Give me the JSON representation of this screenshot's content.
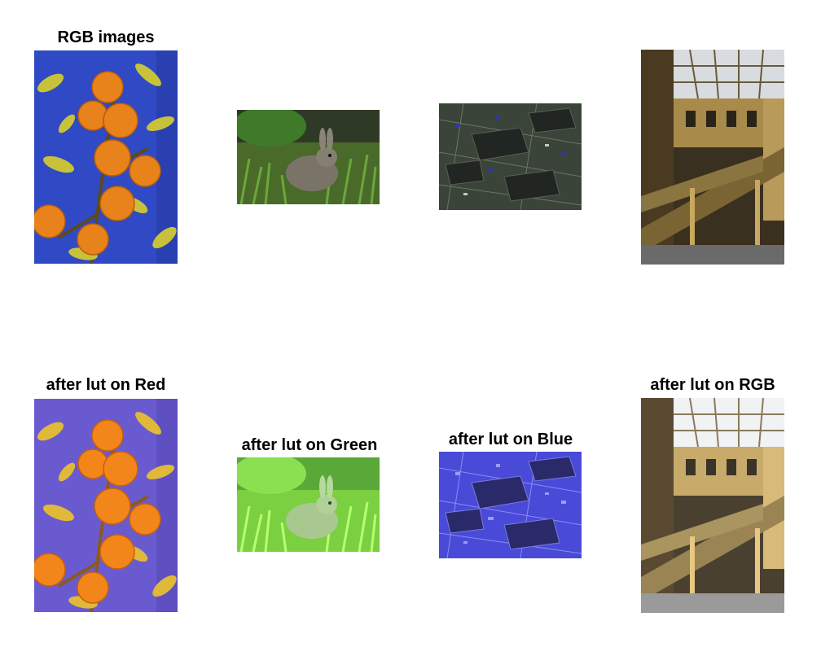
{
  "figure": {
    "titles": {
      "top_left": "RGB images",
      "bottom_col1": "after lut on Red",
      "bottom_col2": "after lut on Green",
      "bottom_col3": "after lut on Blue",
      "bottom_col4": "after lut on RGB"
    },
    "images": [
      {
        "subject": "oranges-on-tree",
        "row": "original"
      },
      {
        "subject": "rabbit-in-grass",
        "row": "original"
      },
      {
        "subject": "circuit-board",
        "row": "original"
      },
      {
        "subject": "ornate-atrium-staircase",
        "row": "original"
      },
      {
        "subject": "oranges-on-tree",
        "row": "lut-red"
      },
      {
        "subject": "rabbit-in-grass",
        "row": "lut-green"
      },
      {
        "subject": "circuit-board",
        "row": "lut-blue"
      },
      {
        "subject": "ornate-atrium-staircase",
        "row": "lut-rgb"
      }
    ],
    "colors": {
      "sky_blue": "#2f4fc8",
      "lut_red_sky": "#6a5ad0",
      "lut_green_tint": "#7dff3a",
      "lut_blue_tint": "#3535d8",
      "orange": "#e8821a"
    }
  }
}
